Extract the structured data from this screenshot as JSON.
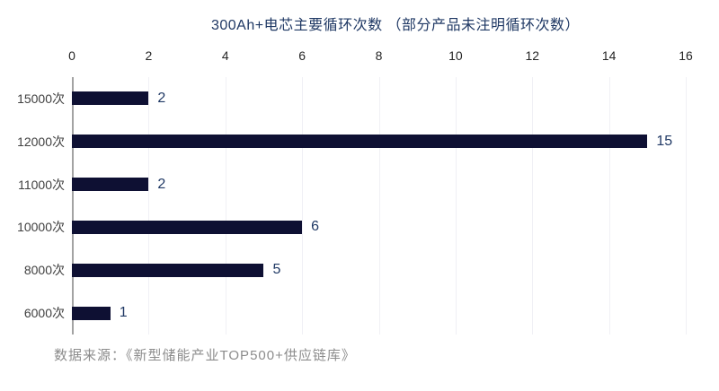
{
  "chart_data": {
    "type": "bar",
    "orientation": "horizontal",
    "title": "300Ah+电芯主要循环次数 （部分产品未注明循环次数）",
    "categories": [
      "15000次",
      "12000次",
      "11000次",
      "10000次",
      "8000次",
      "6000次"
    ],
    "values": [
      2,
      15,
      2,
      6,
      5,
      1
    ],
    "xlim": [
      0,
      16
    ],
    "x_ticks": [
      0,
      2,
      4,
      6,
      8,
      10,
      12,
      14,
      16
    ],
    "axis_position": "top",
    "grid": "faint-vertical",
    "legend": "none",
    "bar_color": "#0e1033",
    "value_label_color": "#1f3864",
    "title_color": "#1f3864",
    "tick_label_color": "#262626",
    "category_label_color": "#404040",
    "axis_line_color": "#a3a3a3",
    "source": "数据来源：《新型储能产业TOP500+供应链库》",
    "source_color": "#8c8c8c"
  }
}
